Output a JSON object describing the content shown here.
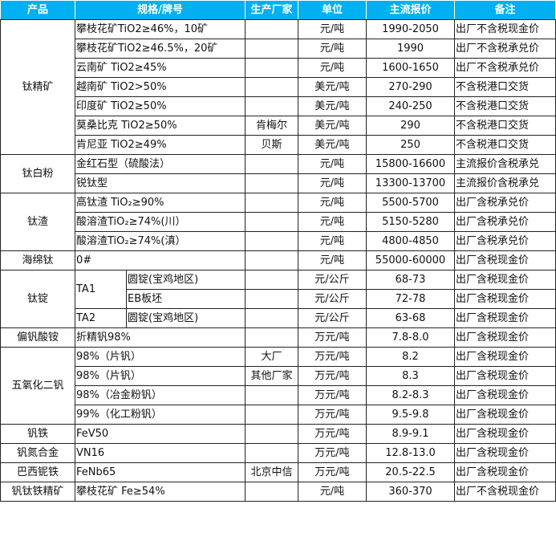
{
  "header": {
    "product": "产品",
    "spec": "规格/牌号",
    "maker": "生产厂家",
    "unit": "单位",
    "price": "主流报价",
    "note": "备注"
  },
  "header_color": "#00b0f0",
  "groups": [
    {
      "product": "钛精矿",
      "rows": [
        {
          "spec": "攀枝花矿TiO2≥46%，10矿",
          "maker": "",
          "unit": "元/吨",
          "price": "1990-2050",
          "note": "出厂不含税现金价"
        },
        {
          "spec": "攀枝花矿TiO2≥46.5%，20矿",
          "maker": "",
          "unit": "元/吨",
          "price": "1990",
          "note": "出厂不含税承兑价"
        },
        {
          "spec": "云南矿 TiO2≥45%",
          "maker": "",
          "unit": "元/吨",
          "price": "1600-1650",
          "note": "出厂不含税承兑价"
        },
        {
          "spec": "越南矿 TiO2>50%",
          "maker": "",
          "unit": "美元/吨",
          "price": "270-290",
          "note": "不含税港口交货"
        },
        {
          "spec": "印度矿 TiO2≥50%",
          "maker": "",
          "unit": "美元/吨",
          "price": "240-250",
          "note": "不含税港口交货"
        },
        {
          "spec": "莫桑比克 TiO2≥50%",
          "maker": "肯梅尔",
          "unit": "美元/吨",
          "price": "290",
          "note": "不含税港口交货"
        },
        {
          "spec": "肯尼亚 TiO2≥49%",
          "maker": "贝斯",
          "unit": "美元/吨",
          "price": "250",
          "note": "不含税港口交货"
        }
      ]
    },
    {
      "product": "钛白粉",
      "rows": [
        {
          "spec": "金红石型（硫酸法）",
          "maker": "",
          "unit": "元/吨",
          "price": "15800-16600",
          "note": "主流报价含税承兑"
        },
        {
          "spec": "锐钛型",
          "maker": "",
          "unit": "元/吨",
          "price": "13300-13700",
          "note": "主流报价含税承兑"
        }
      ]
    },
    {
      "product": "钛渣",
      "rows": [
        {
          "spec": "高钛渣 TiO₂≥90%",
          "maker": "",
          "unit": "元/吨",
          "price": "5500-5700",
          "note": "出厂含税承兑价"
        },
        {
          "spec": "酸溶渣TiO₂≥74%(川）",
          "maker": "",
          "unit": "元/吨",
          "price": "5150-5280",
          "note": "出厂含税承兑价"
        },
        {
          "spec": "酸溶渣TiO₂≥74%(滇）",
          "maker": "",
          "unit": "元/吨",
          "price": "4800-4850",
          "note": "出厂含税承兑价"
        }
      ]
    },
    {
      "product": "海绵钛",
      "rows": [
        {
          "spec": "0#",
          "maker": "",
          "unit": "元/吨",
          "price": "55000-60000",
          "note": "出厂含税现金价"
        }
      ]
    },
    {
      "product": "钛锭",
      "rows": [
        {
          "grade": "TA1",
          "grade_span": 2,
          "spec": "圆锭(宝鸡地区)",
          "maker": "",
          "unit": "元/公斤",
          "price": "68-73",
          "note": "出厂含税现金价"
        },
        {
          "spec": "EB板坯",
          "maker": "",
          "unit": "元/公斤",
          "price": "72-78",
          "note": "出厂含税现金价",
          "sub": true
        },
        {
          "grade": "TA2",
          "grade_span": 1,
          "spec": "圆锭(宝鸡地区)",
          "maker": "",
          "unit": "元/公斤",
          "price": "63-68",
          "note": "出厂含税现金价"
        }
      ]
    },
    {
      "product": "偏钒酸铵",
      "rows": [
        {
          "spec": "折精钒98%",
          "maker": "",
          "unit": "万元/吨",
          "price": "7.8-8.0",
          "note": "出厂含税现金价"
        }
      ]
    },
    {
      "product": "五氧化二钒",
      "rows": [
        {
          "spec": "98%（片钒）",
          "maker": "大厂",
          "unit": "万元/吨",
          "price": "8.2",
          "note": "出厂含税现金价"
        },
        {
          "spec": "98%（片钒）",
          "maker": "其他厂家",
          "unit": "万元/吨",
          "price": "8.3",
          "note": "出厂含税现金价"
        },
        {
          "spec": "98%（冶金粉钒）",
          "maker": "",
          "unit": "万元/吨",
          "price": "8.2-8.3",
          "note": "出厂含税现金价"
        },
        {
          "spec": "99%（化工粉钒）",
          "maker": "",
          "unit": "万元/吨",
          "price": "9.5-9.8",
          "note": "出厂含税现金价"
        }
      ]
    },
    {
      "product": "钒铁",
      "rows": [
        {
          "spec": "FeV50",
          "maker": "",
          "unit": "万元/吨",
          "price": "8.9-9.1",
          "note": "出厂含税现金价"
        }
      ]
    },
    {
      "product": "钒氮合金",
      "rows": [
        {
          "spec": "VN16",
          "maker": "",
          "unit": "万元/吨",
          "price": "12.8-13.0",
          "note": "出厂含税现金价"
        }
      ]
    },
    {
      "product": "巴西铌铁",
      "rows": [
        {
          "spec": "FeNb65",
          "maker": "北京中信",
          "unit": "万元/吨",
          "price": "20.5-22.5",
          "note": "出厂含税现金价"
        }
      ]
    },
    {
      "product": "钒钛铁精矿",
      "rows": [
        {
          "spec": "攀枝花矿 Fe≥54%",
          "maker": "",
          "unit": "元/吨",
          "price": "360-370",
          "note": "出厂不含税现金价"
        }
      ]
    }
  ]
}
